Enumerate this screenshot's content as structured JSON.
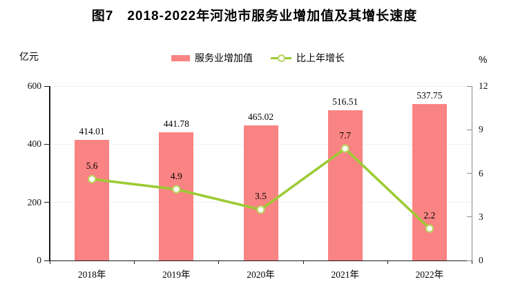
{
  "page": {
    "title": "图7　2018-2022年河池市服务业增加值及其增长速度"
  },
  "legend": {
    "items": [
      {
        "label": "服务业增加值",
        "marker": "bar-swatch"
      },
      {
        "label": "比上年增长",
        "marker": "line-circle-marker"
      }
    ]
  },
  "axes": {
    "left": {
      "unit": "亿元",
      "ticks": [
        0,
        200,
        400,
        600
      ],
      "range": [
        0,
        600
      ]
    },
    "right": {
      "unit": "%",
      "ticks": [
        0,
        3,
        6,
        9,
        12
      ],
      "range": [
        0,
        12
      ]
    }
  },
  "chart_data": {
    "type": "bar",
    "subtype": "combo-bar-line-dual-axis",
    "title": "图7　2018-2022年河池市服务业增加值及其增长速度",
    "categories": [
      "2018年",
      "2019年",
      "2020年",
      "2021年",
      "2022年"
    ],
    "series": [
      {
        "name": "服务业增加值",
        "type": "bar",
        "axis": "left",
        "unit": "亿元",
        "values": [
          414.01,
          441.78,
          465.02,
          516.51,
          537.75
        ],
        "labels": [
          "414.01",
          "441.78",
          "465.02",
          "516.51",
          "537.75"
        ]
      },
      {
        "name": "比上年增长",
        "type": "line",
        "axis": "right",
        "unit": "%",
        "values": [
          5.6,
          4.9,
          3.5,
          7.7,
          2.2
        ],
        "labels": [
          "5.6",
          "4.9",
          "3.5",
          "7.7",
          "2.2"
        ]
      }
    ],
    "left_ylim": [
      0,
      600
    ],
    "right_ylim": [
      0,
      12
    ],
    "grid": "horizontal-light",
    "legend_position": "top-center"
  },
  "colors": {
    "bar": "#FA8383",
    "line": "#9BCB33",
    "marker_fill": "#FFFFFF",
    "marker_ring": "#B8D75F",
    "axis_left": "#1a1a1a",
    "axis_bottom": "#1a1a1a",
    "axis_right": "#8a8a8a",
    "grid": "#F5F0F0",
    "text": "#000000"
  }
}
